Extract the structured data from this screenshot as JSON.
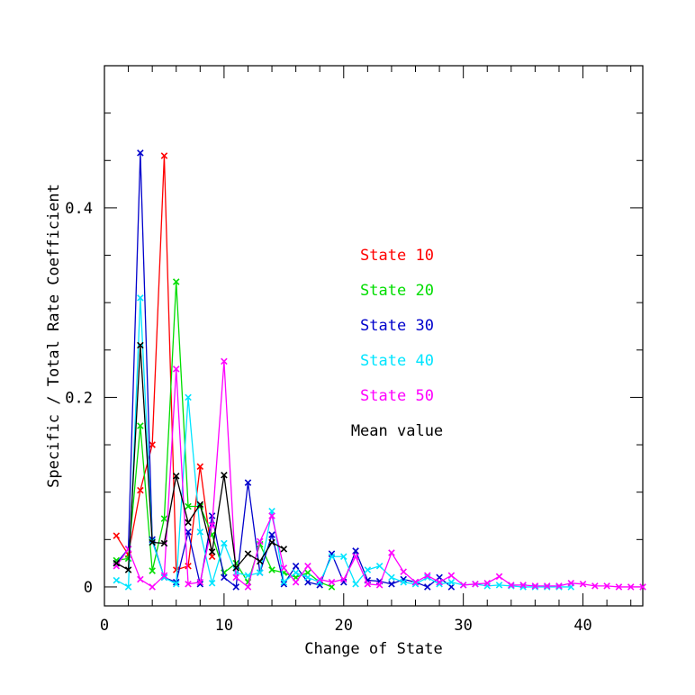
{
  "chart_data": {
    "type": "line",
    "xlabel": "Change of State",
    "ylabel": "Specific / Total Rate Coefficient",
    "xlim": [
      0,
      45
    ],
    "ylim": [
      -0.02,
      0.55
    ],
    "xticks": [
      0,
      10,
      20,
      30,
      40
    ],
    "xtick_labels": [
      "0",
      "10",
      "20",
      "30",
      "40"
    ],
    "yticks": [
      0,
      0.2,
      0.4
    ],
    "ytick_labels": [
      "0",
      "0.2",
      "0.4"
    ],
    "grid": false,
    "legend_position": "inside-center-right",
    "series": [
      {
        "name": "State 10",
        "color": "#ff0000",
        "x": [
          1,
          2,
          3,
          4,
          5,
          6,
          7,
          8,
          9
        ],
        "y": [
          0.054,
          0.034,
          0.102,
          0.15,
          0.455,
          0.018,
          0.022,
          0.127,
          0.032
        ]
      },
      {
        "name": "State 20",
        "color": "#00dd00",
        "x": [
          1,
          2,
          3,
          4,
          5,
          6,
          7,
          8,
          9,
          10,
          11,
          12,
          13,
          14,
          15,
          16,
          17,
          18,
          19
        ],
        "y": [
          0.028,
          0.03,
          0.17,
          0.017,
          0.072,
          0.322,
          0.085,
          0.085,
          0.055,
          0.015,
          0.025,
          0.005,
          0.045,
          0.018,
          0.015,
          0.01,
          0.015,
          0.005,
          0.0
        ]
      },
      {
        "name": "State 30",
        "color": "#0000cc",
        "x": [
          1,
          2,
          3,
          4,
          5,
          6,
          7,
          8,
          9,
          10,
          11,
          12,
          13,
          14,
          15,
          16,
          17,
          18,
          19,
          20,
          21,
          22,
          23,
          24,
          25,
          26,
          27,
          28,
          29
        ],
        "y": [
          0.025,
          0.04,
          0.458,
          0.05,
          0.01,
          0.005,
          0.058,
          0.003,
          0.075,
          0.01,
          0.0,
          0.11,
          0.015,
          0.055,
          0.003,
          0.022,
          0.005,
          0.002,
          0.035,
          0.005,
          0.038,
          0.007,
          0.006,
          0.003,
          0.008,
          0.005,
          0.0,
          0.01,
          0.0
        ]
      },
      {
        "name": "State 40",
        "color": "#00e5ff",
        "x": [
          1,
          2,
          3,
          4,
          5,
          6,
          7,
          8,
          9,
          10,
          11,
          12,
          13,
          14,
          15,
          16,
          17,
          18,
          19,
          20,
          21,
          22,
          23,
          24,
          25,
          26,
          27,
          28,
          29,
          30,
          31,
          32,
          33,
          34,
          35,
          36,
          37,
          38,
          39
        ],
        "y": [
          0.007,
          0.0,
          0.305,
          0.048,
          0.01,
          0.003,
          0.2,
          0.058,
          0.004,
          0.046,
          0.015,
          0.012,
          0.015,
          0.08,
          0.005,
          0.015,
          0.01,
          0.005,
          0.032,
          0.032,
          0.003,
          0.018,
          0.022,
          0.01,
          0.005,
          0.003,
          0.01,
          0.003,
          0.005,
          0.002,
          0.003,
          0.001,
          0.002,
          0.001,
          0.0,
          0.0,
          0.0,
          0.0,
          0.0
        ]
      },
      {
        "name": "State 50",
        "color": "#ff00ff",
        "x": [
          1,
          2,
          3,
          4,
          5,
          6,
          7,
          8,
          9,
          10,
          11,
          12,
          13,
          14,
          15,
          16,
          17,
          18,
          19,
          20,
          21,
          22,
          23,
          24,
          25,
          26,
          27,
          28,
          29,
          30,
          31,
          32,
          33,
          34,
          35,
          36,
          37,
          38,
          39,
          40,
          41,
          42,
          43,
          44,
          45
        ],
        "y": [
          0.022,
          0.04,
          0.008,
          0.0,
          0.012,
          0.23,
          0.003,
          0.005,
          0.065,
          0.238,
          0.01,
          0.0,
          0.048,
          0.075,
          0.02,
          0.005,
          0.022,
          0.008,
          0.005,
          0.008,
          0.032,
          0.003,
          0.002,
          0.036,
          0.016,
          0.005,
          0.012,
          0.005,
          0.012,
          0.002,
          0.003,
          0.004,
          0.011,
          0.002,
          0.002,
          0.001,
          0.001,
          0.001,
          0.004,
          0.003,
          0.001,
          0.001,
          0.0,
          0.0,
          0.0
        ]
      },
      {
        "name": "Mean value",
        "color": "#000000",
        "x": [
          1,
          2,
          3,
          4,
          5,
          6,
          7,
          8,
          9,
          10,
          11,
          12,
          13,
          14,
          15
        ],
        "y": [
          0.025,
          0.018,
          0.255,
          0.047,
          0.046,
          0.117,
          0.068,
          0.087,
          0.037,
          0.118,
          0.02,
          0.035,
          0.027,
          0.047,
          0.04
        ]
      }
    ]
  }
}
